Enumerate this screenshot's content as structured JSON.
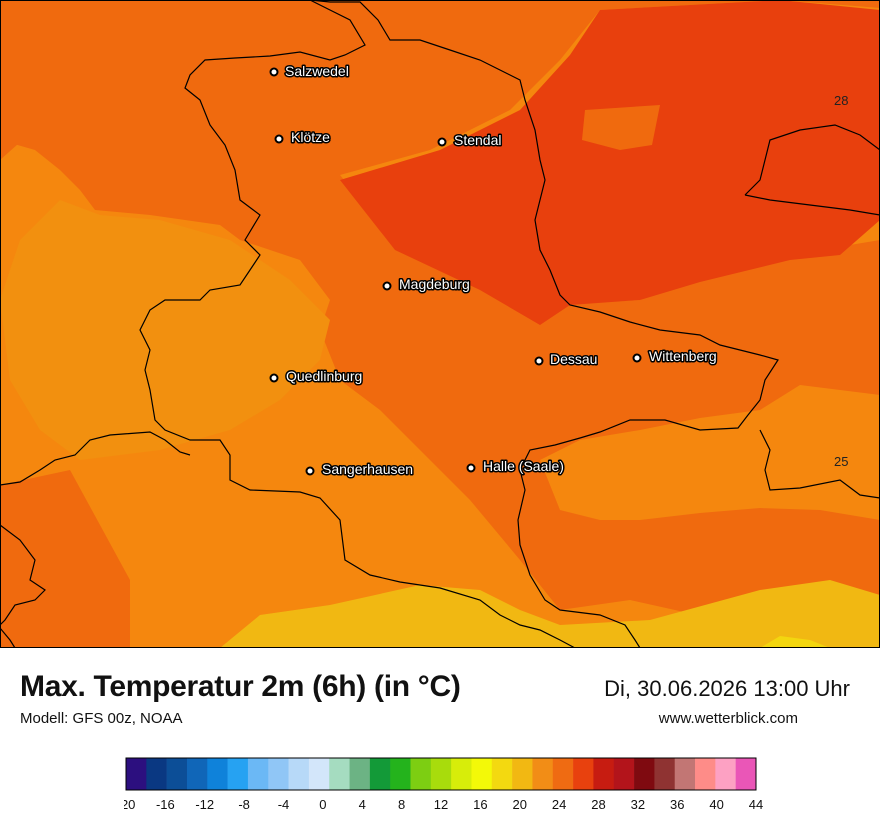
{
  "title": "Max. Temperatur 2m (6h) (in °C)",
  "model": "Modell: GFS 00z, NOAA",
  "datetime": "Di, 30.06.2026 13:00 Uhr",
  "website": "www.wetterblick.com",
  "cities": [
    {
      "name": "Salzwedel"
    },
    {
      "name": "Klötze"
    },
    {
      "name": "Stendal"
    },
    {
      "name": "Magdeburg"
    },
    {
      "name": "Dessau"
    },
    {
      "name": "Wittenberg"
    },
    {
      "name": "Quedlinburg"
    },
    {
      "name": "Sangerhausen"
    },
    {
      "name": "Halle (Saale)"
    }
  ],
  "isolines": [
    {
      "label": "28"
    },
    {
      "label": "25"
    }
  ],
  "legend": {
    "ticks": [
      "-20",
      "-16",
      "-12",
      "-8",
      "-4",
      "0",
      "4",
      "8",
      "12",
      "16",
      "20",
      "24",
      "28",
      "32",
      "36",
      "40",
      "44"
    ],
    "colors": [
      "#2c0f7f",
      "#0a3882",
      "#0c4e97",
      "#1066b8",
      "#0f82da",
      "#26a2f2",
      "#6bb8f5",
      "#90c6f6",
      "#b7d9f8",
      "#d3e6fa",
      "#a5dcc0",
      "#6cb384",
      "#139a38",
      "#24b31c",
      "#7dce12",
      "#a8dc0c",
      "#d7ed0a",
      "#f3f908",
      "#f3d910",
      "#f2b812",
      "#f28d16",
      "#ef6b12",
      "#e8410e",
      "#c71c11",
      "#b3141b",
      "#7f0a10",
      "#8f3332",
      "#c27674",
      "#fe8c88",
      "#fda1c3",
      "#ea56b7"
    ]
  }
}
